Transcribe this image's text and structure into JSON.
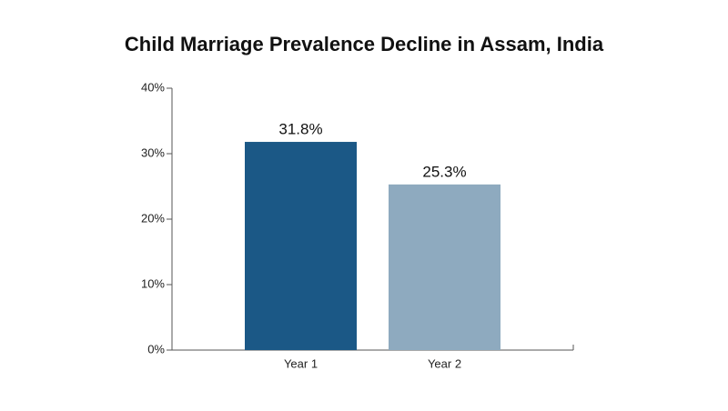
{
  "chart_data": {
    "type": "bar",
    "title": "Child Marriage Prevalence Decline in Assam, India",
    "categories": [
      "Year 1",
      "Year 2"
    ],
    "values": [
      31.8,
      25.3
    ],
    "value_labels": [
      "31.8%",
      "25.3%"
    ],
    "colors": [
      "#1b5886",
      "#8eaabf"
    ],
    "ylim": [
      0,
      40
    ],
    "yticks": [
      {
        "value": 0,
        "label": "0%"
      },
      {
        "value": 10,
        "label": "10%"
      },
      {
        "value": 20,
        "label": "20%"
      },
      {
        "value": 30,
        "label": "30%"
      },
      {
        "value": 40,
        "label": "40%"
      }
    ],
    "grid": false
  }
}
